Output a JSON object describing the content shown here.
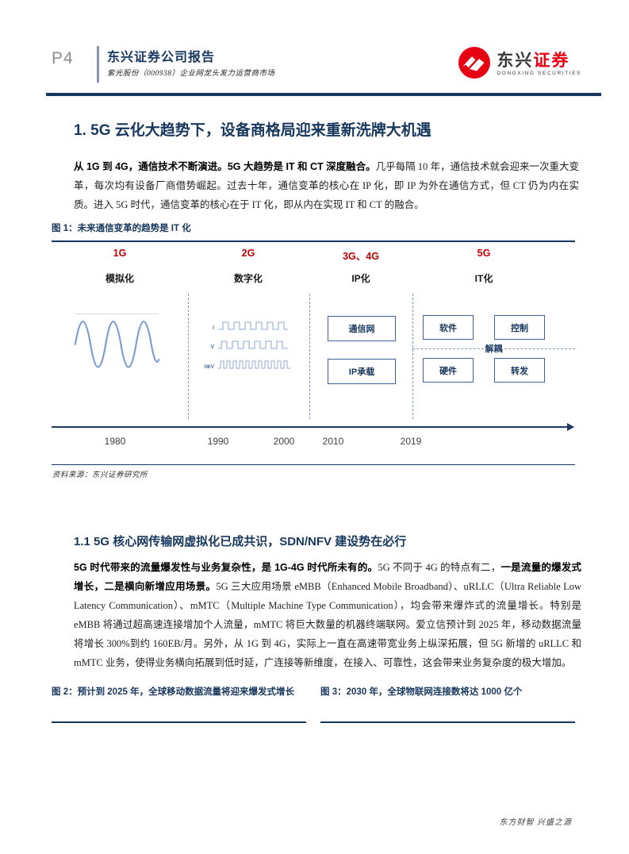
{
  "page": {
    "page_number": "P4",
    "report_type": "东兴证券公司报告",
    "report_subtitle": "紫光股份（000938）企业网龙头发力运营商市场",
    "footer_slogan": "东方财智 兴盛之源"
  },
  "logo": {
    "name_cn_dark": "东兴",
    "name_cn_red": "证券",
    "name_en": "DONGXING SECURITIES",
    "brand_red": "#e60012"
  },
  "colors": {
    "navy": "#17375e",
    "generation_red": "#c00000"
  },
  "section1": {
    "heading": "1. 5G 云化大趋势下，设备商格局迎来重新洗牌大机遇",
    "paragraph": [
      {
        "text": "从 1G 到 4G，通信技术不断演进。5G 大趋势是 IT 和 CT 深度融合。",
        "bold": true
      },
      {
        "text": "几乎每隔 10 年，通信技术就会迎来一次重大变革，每次均有设备厂商借势崛起。过去十年，通信变革的核心在 IP 化，即 IP 为外在通信方式，但 CT 仍为内在实质。进入 5G 时代，通信变革的核心在于 IT 化，即从内在实现 IT 和 CT 的融合。",
        "bold": false
      }
    ]
  },
  "figure1": {
    "caption": "图 1：未来通信变革的趋势是 IT 化",
    "source": "资料来源：东兴证券研究所",
    "columns": [
      {
        "generation": "1G",
        "label": "模拟化",
        "visual": "sine-wave"
      },
      {
        "generation": "2G",
        "label": "数字化",
        "visual": "square-waves",
        "wave_labels": [
          "I",
          "V",
          "I⊕V"
        ]
      },
      {
        "generation": "3G、4G",
        "label": "IP化",
        "boxes": [
          "通信网",
          "IP承载"
        ]
      },
      {
        "generation": "5G",
        "label": "IT化",
        "boxes_top": [
          "软件",
          "控制"
        ],
        "boxes_bottom": [
          "硬件",
          "转发"
        ],
        "decouple_label": "解耦"
      }
    ],
    "timeline_years": [
      "1980",
      "1990",
      "2000",
      "2010",
      "2019"
    ]
  },
  "section1_1": {
    "heading": "1.1 5G 核心网传输网虚拟化已成共识，SDN/NFV 建设势在必行",
    "paragraph": [
      {
        "text": "5G 时代带来的流量爆发性与业务复杂性，是 1G-4G 时代所未有的。",
        "bold": true
      },
      {
        "text": "5G 不同于 4G 的特点有二，",
        "bold": false
      },
      {
        "text": "一是流量的爆发式增长，二是横向新增应用场景。",
        "bold": true
      },
      {
        "text": "5G 三大应用场景 eMBB（Enhanced Mobile Broadband）、uRLLC（Ultra Reliable Low Latency Communication）、mMTC（Multiple Machine Type Communication），均会带来爆炸式的流量增长。特别是 eMBB 将通过超高速连接增加个人流量，mMTC 将巨大数量的机器终端联网。爱立信预计到 2025 年，移动数据流量将增长 300%到约 160EB/月。另外，从 1G 到 4G，实际上一直在高速带宽业务上纵深拓展，但 5G 新增的 uRLLC 和 mMTC 业务，使得业务横向拓展到低时延，广连接等新维度，在接入、可靠性，这会带来业务复杂度的极大增加。",
        "bold": false
      }
    ]
  },
  "figure2": {
    "caption": "图 2：预计到 2025 年，全球移动数据流量将迎来爆发式增长"
  },
  "figure3": {
    "caption": "图 3：2030 年，全球物联网连接数将达 1000 亿个"
  }
}
